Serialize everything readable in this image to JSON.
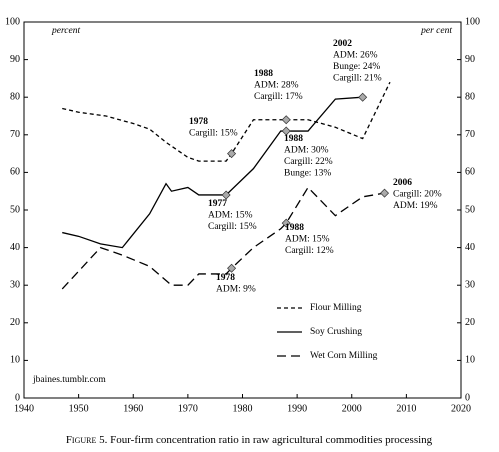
{
  "chart_data": {
    "type": "line",
    "figure_label": "Figure 5.",
    "caption": "Four-firm concentration ratio in raw agricultural commodities processing",
    "ylabel": "percent",
    "y2label": "per cent",
    "source": "jbaines.tumblr.com",
    "xlim": [
      1940,
      2020
    ],
    "xticks": [
      1940,
      1950,
      1960,
      1970,
      1980,
      1990,
      2000,
      2010,
      2020
    ],
    "ylim": [
      0,
      100
    ],
    "yticks": [
      0,
      10,
      20,
      30,
      40,
      50,
      60,
      70,
      80,
      90,
      100
    ],
    "y2lim": [
      0,
      100
    ],
    "y2ticks": [
      0,
      10,
      20,
      30,
      40,
      50,
      60,
      70,
      80,
      90,
      100
    ],
    "series": [
      {
        "name": "Flour Milling",
        "color": "#000",
        "dash": "4,3",
        "x": [
          1947,
          1950,
          1955,
          1960,
          1963,
          1966,
          1967,
          1970,
          1972,
          1975,
          1977,
          1978,
          1982,
          1985,
          1988,
          1992,
          1997,
          2002,
          2007
        ],
        "values": [
          77,
          76,
          75,
          73,
          71.5,
          68,
          67,
          64,
          63,
          63,
          63,
          65,
          74,
          74,
          74,
          74,
          72,
          69,
          84
        ],
        "marker_x": [
          1978,
          1988
        ]
      },
      {
        "name": "Soy Crushing",
        "color": "#000",
        "dash": "none",
        "x": [
          1947,
          1950,
          1954,
          1958,
          1963,
          1966,
          1967,
          1970,
          1972,
          1977,
          1982,
          1987,
          1988,
          1992,
          1997,
          2002
        ],
        "values": [
          44,
          43,
          41,
          40,
          49,
          57,
          55,
          56,
          54,
          54,
          61,
          71,
          71,
          71,
          79.5,
          80
        ],
        "marker_x": [
          1977,
          1988,
          2002
        ]
      },
      {
        "name": "Wet Corn Milling",
        "color": "#000",
        "dash": "9,5",
        "x": [
          1947,
          1954,
          1958,
          1963,
          1967,
          1970,
          1972,
          1977,
          1978,
          1982,
          1987,
          1988,
          1992,
          1997,
          2002,
          2006
        ],
        "values": [
          29,
          40,
          38,
          35,
          30,
          30,
          33,
          33,
          34.5,
          40,
          45,
          46.5,
          56,
          48.5,
          53.5,
          54.5
        ],
        "marker_x": [
          1978,
          1988,
          2006
        ]
      }
    ],
    "annotations": [
      {
        "lines": [
          "2002",
          "ADM: 26%",
          "Bunge: 24%",
          "Cargill: 21%"
        ]
      },
      {
        "lines": [
          "1988",
          "ADM: 28%",
          "Cargill: 17%"
        ]
      },
      {
        "lines": [
          "1978",
          "Cargill: 15%"
        ]
      },
      {
        "lines": [
          "1988",
          "ADM: 30%",
          "Cargill: 22%",
          "Bunge: 13%"
        ]
      },
      {
        "lines": [
          "2006",
          "Cargill: 20%",
          "ADM: 19%"
        ]
      },
      {
        "lines": [
          "1977",
          "ADM: 15%",
          "Cargill: 15%"
        ]
      },
      {
        "lines": [
          "1988",
          "ADM: 15%",
          "Cargill: 12%"
        ]
      },
      {
        "lines": [
          "1978",
          "ADM: 9%"
        ]
      }
    ]
  }
}
